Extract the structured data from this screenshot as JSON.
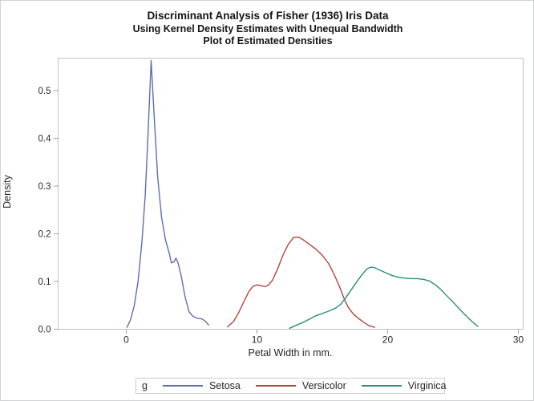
{
  "titles": {
    "line1": "Discriminant Analysis of Fisher (1936) Iris Data",
    "line2": "Using Kernel Density Estimates with Unequal Bandwidth",
    "line3": "Plot of Estimated Densities"
  },
  "chart_data": {
    "type": "line",
    "title": "Plot of Estimated Densities",
    "xlabel": "Petal Width in mm.",
    "ylabel": "Density",
    "x_axis": {
      "range": [
        -5.215,
        30.37
      ],
      "ticks": [
        0,
        10,
        20,
        30
      ],
      "tick_labels": [
        "0",
        "10",
        "20",
        "30"
      ]
    },
    "y_axis": {
      "range": [
        0,
        0.568
      ],
      "ticks": [
        0,
        0.1,
        0.2,
        0.3,
        0.4,
        0.5
      ],
      "tick_labels": [
        "0.0",
        "0.1",
        "0.2",
        "0.3",
        "0.4",
        "0.5"
      ]
    },
    "grid": false,
    "legend_position": "bottom",
    "series": [
      {
        "name": "Setosa",
        "color": "#5d6fae",
        "points": [
          [
            0.05,
            0.004
          ],
          [
            0.3,
            0.018
          ],
          [
            0.6,
            0.048
          ],
          [
            0.9,
            0.1
          ],
          [
            1.2,
            0.185
          ],
          [
            1.45,
            0.28
          ],
          [
            1.65,
            0.4
          ],
          [
            1.9,
            0.563
          ],
          [
            2.15,
            0.44
          ],
          [
            2.4,
            0.32
          ],
          [
            2.7,
            0.235
          ],
          [
            3.0,
            0.187
          ],
          [
            3.3,
            0.158
          ],
          [
            3.45,
            0.139
          ],
          [
            3.65,
            0.141
          ],
          [
            3.8,
            0.149
          ],
          [
            3.95,
            0.14
          ],
          [
            4.2,
            0.112
          ],
          [
            4.5,
            0.068
          ],
          [
            4.8,
            0.037
          ],
          [
            5.1,
            0.027
          ],
          [
            5.4,
            0.023
          ],
          [
            5.75,
            0.022
          ],
          [
            6.0,
            0.018
          ],
          [
            6.3,
            0.009
          ]
        ]
      },
      {
        "name": "Versicolor",
        "color": "#b0453b",
        "points": [
          [
            7.75,
            0.005
          ],
          [
            8.2,
            0.016
          ],
          [
            8.6,
            0.035
          ],
          [
            9.0,
            0.058
          ],
          [
            9.4,
            0.08
          ],
          [
            9.7,
            0.09
          ],
          [
            10.0,
            0.093
          ],
          [
            10.35,
            0.091
          ],
          [
            10.6,
            0.089
          ],
          [
            10.9,
            0.093
          ],
          [
            11.2,
            0.103
          ],
          [
            11.6,
            0.128
          ],
          [
            12.0,
            0.156
          ],
          [
            12.4,
            0.178
          ],
          [
            12.8,
            0.192
          ],
          [
            13.2,
            0.193
          ],
          [
            13.5,
            0.188
          ],
          [
            14.0,
            0.178
          ],
          [
            14.5,
            0.168
          ],
          [
            15.0,
            0.155
          ],
          [
            15.5,
            0.137
          ],
          [
            15.9,
            0.115
          ],
          [
            16.3,
            0.09
          ],
          [
            16.7,
            0.062
          ],
          [
            17.0,
            0.045
          ],
          [
            17.4,
            0.031
          ],
          [
            17.8,
            0.022
          ],
          [
            18.2,
            0.014
          ],
          [
            18.6,
            0.007
          ],
          [
            19.0,
            0.004
          ]
        ]
      },
      {
        "name": "Virginica",
        "color": "#2e8d7d",
        "points": [
          [
            12.5,
            0.002
          ],
          [
            13.0,
            0.008
          ],
          [
            13.5,
            0.014
          ],
          [
            14.0,
            0.021
          ],
          [
            14.5,
            0.028
          ],
          [
            15.0,
            0.033
          ],
          [
            15.5,
            0.038
          ],
          [
            16.0,
            0.044
          ],
          [
            16.4,
            0.052
          ],
          [
            16.8,
            0.066
          ],
          [
            17.2,
            0.082
          ],
          [
            17.6,
            0.098
          ],
          [
            18.0,
            0.113
          ],
          [
            18.4,
            0.126
          ],
          [
            18.7,
            0.13
          ],
          [
            19.0,
            0.129
          ],
          [
            19.4,
            0.124
          ],
          [
            19.8,
            0.119
          ],
          [
            20.3,
            0.113
          ],
          [
            20.8,
            0.109
          ],
          [
            21.3,
            0.107
          ],
          [
            21.8,
            0.106
          ],
          [
            22.3,
            0.106
          ],
          [
            22.8,
            0.104
          ],
          [
            23.2,
            0.101
          ],
          [
            23.6,
            0.094
          ],
          [
            24.0,
            0.085
          ],
          [
            24.5,
            0.071
          ],
          [
            25.0,
            0.057
          ],
          [
            25.5,
            0.042
          ],
          [
            26.0,
            0.028
          ],
          [
            26.5,
            0.015
          ],
          [
            26.9,
            0.006
          ]
        ]
      }
    ]
  },
  "axis_titles": {
    "x": "Petal Width in mm.",
    "y": "Density"
  },
  "legend": {
    "title": "g",
    "items": [
      {
        "label": "Setosa",
        "color": "#5d6fae"
      },
      {
        "label": "Versicolor",
        "color": "#b0453b"
      },
      {
        "label": "Virginica",
        "color": "#2e8d7d"
      }
    ]
  },
  "colors": {
    "frame": "#bcc1c3",
    "tick": "#9aa0a3",
    "tick_label": "#262626",
    "title_text": "#141414",
    "outer_border": "#cfd3d5"
  }
}
